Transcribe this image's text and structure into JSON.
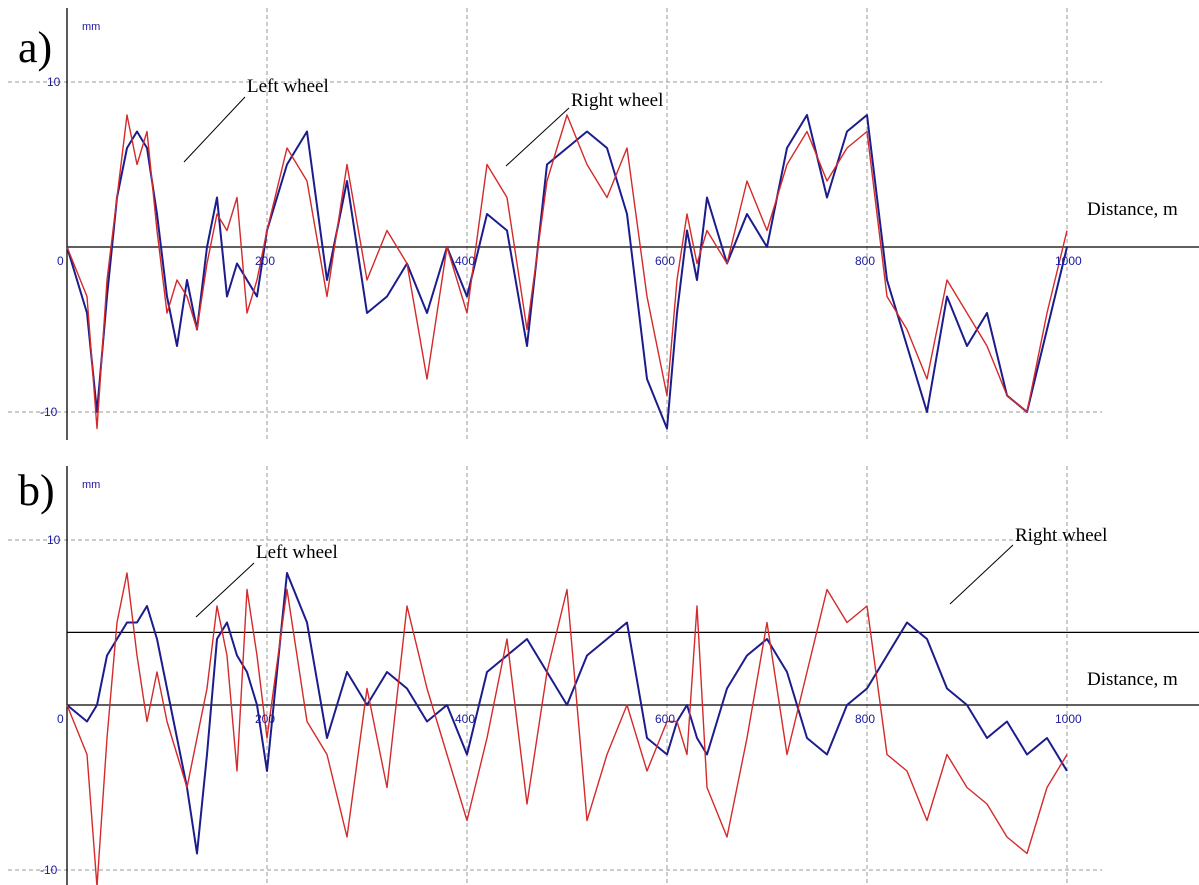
{
  "colors": {
    "left_wheel": "#1c1c8c",
    "right_wheel": "#d42a2a",
    "grid": "#9a9a9a",
    "axis": "#000000",
    "ticks": "#1a1aa0"
  },
  "chart_data": [
    {
      "type": "line",
      "panel_label": "a)",
      "y_unit": "mm",
      "xlabel": "Distance, m",
      "xlim": [
        0,
        1000
      ],
      "ylim": [
        -11.5,
        14.5
      ],
      "x_ticks": [
        0,
        200,
        400,
        600,
        800,
        1000
      ],
      "x_tick_labels": [
        "0",
        "200",
        "400",
        "600",
        "800",
        "1000"
      ],
      "y_ticks": [
        10,
        -10
      ],
      "y_tick_labels": [
        "10",
        "-10"
      ],
      "grid": true,
      "reference_lines": [
        0
      ],
      "series": [
        {
          "name": "Left wheel",
          "color": "#1c1c8c",
          "x": [
            0,
            20,
            30,
            40,
            50,
            60,
            70,
            80,
            90,
            100,
            110,
            120,
            130,
            140,
            150,
            160,
            170,
            180,
            190,
            200,
            220,
            240,
            260,
            280,
            300,
            320,
            340,
            360,
            380,
            400,
            420,
            440,
            460,
            480,
            500,
            520,
            540,
            560,
            580,
            600,
            610,
            620,
            630,
            640,
            660,
            680,
            700,
            720,
            740,
            760,
            780,
            800,
            820,
            840,
            860,
            880,
            900,
            920,
            940,
            960,
            980,
            1000
          ],
          "y": [
            0,
            -4,
            -10,
            -3,
            3,
            6,
            7,
            6,
            2,
            -3,
            -6,
            -2,
            -5,
            0,
            3,
            -3,
            -1,
            -2,
            -3,
            1,
            5,
            7,
            -2,
            4,
            -4,
            -3,
            -1,
            -4,
            0,
            -3,
            2,
            1,
            -6,
            5,
            6,
            7,
            6,
            2,
            -8,
            -11,
            -4,
            1,
            -2,
            3,
            -1,
            2,
            0,
            6,
            8,
            3,
            7,
            8,
            -2,
            -6,
            -10,
            -3,
            -6,
            -4,
            -9,
            -10,
            -5,
            0
          ]
        },
        {
          "name": "Right wheel",
          "color": "#d42a2a",
          "x": [
            0,
            20,
            30,
            40,
            50,
            60,
            70,
            80,
            90,
            100,
            110,
            120,
            130,
            140,
            150,
            160,
            170,
            180,
            190,
            200,
            220,
            240,
            260,
            280,
            300,
            320,
            340,
            360,
            380,
            400,
            420,
            440,
            460,
            480,
            500,
            520,
            540,
            560,
            580,
            600,
            610,
            620,
            630,
            640,
            660,
            680,
            700,
            720,
            740,
            760,
            780,
            800,
            820,
            840,
            860,
            880,
            900,
            920,
            940,
            960,
            980,
            1000
          ],
          "y": [
            0,
            -3,
            -11,
            -2,
            3,
            8,
            5,
            7,
            1,
            -4,
            -2,
            -3,
            -5,
            -1,
            2,
            1,
            3,
            -4,
            -2,
            1,
            6,
            4,
            -3,
            5,
            -2,
            1,
            -1,
            -8,
            0,
            -4,
            5,
            3,
            -5,
            4,
            8,
            5,
            3,
            6,
            -3,
            -9,
            -2,
            2,
            -1,
            1,
            -1,
            4,
            1,
            5,
            7,
            4,
            6,
            7,
            -3,
            -5,
            -8,
            -2,
            -4,
            -6,
            -9,
            -10,
            -4,
            1
          ]
        }
      ]
    },
    {
      "type": "line",
      "panel_label": "b)",
      "y_unit": "mm",
      "xlabel": "Distance, m",
      "xlim": [
        0,
        1000
      ],
      "ylim": [
        -11.5,
        14.5
      ],
      "x_ticks": [
        0,
        200,
        400,
        600,
        800,
        1000
      ],
      "x_tick_labels": [
        "0",
        "200",
        "400",
        "600",
        "800",
        "1000"
      ],
      "y_ticks": [
        10,
        -10
      ],
      "y_tick_labels": [
        "10",
        "-10"
      ],
      "grid": true,
      "reference_lines": [
        0,
        4.4
      ],
      "series": [
        {
          "name": "Left wheel",
          "color": "#1c1c8c",
          "x": [
            0,
            20,
            30,
            40,
            50,
            60,
            70,
            80,
            90,
            100,
            110,
            120,
            130,
            140,
            150,
            160,
            170,
            180,
            190,
            200,
            220,
            240,
            260,
            280,
            300,
            320,
            340,
            360,
            380,
            400,
            420,
            440,
            460,
            480,
            500,
            520,
            540,
            560,
            580,
            600,
            610,
            620,
            630,
            640,
            660,
            680,
            700,
            720,
            740,
            760,
            780,
            800,
            820,
            840,
            860,
            880,
            900,
            920,
            940,
            960,
            980,
            1000
          ],
          "y": [
            0,
            -1,
            0,
            3,
            4,
            5,
            5,
            6,
            4,
            1,
            -2,
            -5,
            -9,
            -3,
            4,
            5,
            3,
            2,
            0,
            -4,
            8,
            5,
            -2,
            2,
            0,
            2,
            1,
            -1,
            0,
            -3,
            2,
            3,
            4,
            2,
            0,
            3,
            4,
            5,
            -2,
            -3,
            -1,
            0,
            -2,
            -3,
            1,
            3,
            4,
            2,
            -2,
            -3,
            0,
            1,
            3,
            5,
            4,
            1,
            0,
            -2,
            -1,
            -3,
            -2,
            -4
          ]
        },
        {
          "name": "Right wheel",
          "color": "#d42a2a",
          "x": [
            0,
            20,
            30,
            40,
            50,
            60,
            70,
            80,
            90,
            100,
            110,
            120,
            130,
            140,
            150,
            160,
            170,
            180,
            190,
            200,
            220,
            240,
            260,
            280,
            300,
            320,
            340,
            360,
            380,
            400,
            420,
            440,
            460,
            480,
            500,
            520,
            540,
            560,
            580,
            600,
            610,
            620,
            630,
            640,
            660,
            680,
            700,
            720,
            740,
            760,
            780,
            800,
            820,
            840,
            860,
            880,
            900,
            920,
            940,
            960,
            980,
            1000
          ],
          "y": [
            0,
            -3,
            -11,
            -2,
            5,
            8,
            3,
            -1,
            2,
            -1,
            -3,
            -5,
            -2,
            1,
            6,
            3,
            -4,
            7,
            3,
            -2,
            7,
            -1,
            -3,
            -8,
            1,
            -5,
            6,
            1,
            -3,
            -7,
            -2,
            4,
            -6,
            2,
            7,
            -7,
            -3,
            0,
            -4,
            -1,
            -1,
            -3,
            6,
            -5,
            -8,
            -2,
            5,
            -3,
            2,
            7,
            5,
            6,
            -3,
            -4,
            -7,
            -3,
            -5,
            -6,
            -8,
            -9,
            -5,
            -3
          ]
        }
      ]
    }
  ],
  "annotations": [
    {
      "text": "Left wheel"
    },
    {
      "text": "Right wheel"
    },
    {
      "text": "Left wheel"
    },
    {
      "text": "Right wheel"
    }
  ]
}
